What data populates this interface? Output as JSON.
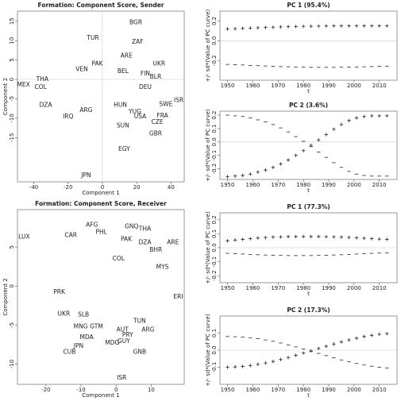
{
  "chart_data": [
    {
      "type": "scatter",
      "title": "Formation: Component Score, Sender",
      "x_label": "Component 1",
      "y_label": "Component 2",
      "labels": [
        "BGR",
        "TUR",
        "ZAF",
        "PAK",
        "ARE",
        "UKR",
        "VEN",
        "MEX",
        "COL",
        "THA",
        "BEL",
        "FIN",
        "BLR",
        "DEU",
        "ISR",
        "SWE",
        "HUN",
        "DZA",
        "IRQ",
        "ARG",
        "USA",
        "FRA",
        "CZE",
        "SUN",
        "GBR",
        "EGY",
        "JPN",
        "YUG"
      ],
      "x": [
        19.5,
        -5.5,
        20.5,
        -3,
        14,
        33,
        -12,
        -46,
        -36,
        -35,
        12,
        25,
        31,
        25,
        44.5,
        37,
        10.5,
        -33,
        -20,
        -9.5,
        22,
        35,
        32,
        12,
        31,
        12.7,
        -9.5,
        19
      ],
      "y": [
        14.6,
        10.6,
        9.6,
        4,
        6,
        4,
        2.6,
        -1.4,
        -2,
        0,
        2,
        1.4,
        0.6,
        -2,
        -5.4,
        -6.4,
        -6.6,
        -6.6,
        -9.6,
        -8,
        -9.6,
        -9.4,
        -11,
        -12,
        -14,
        -18,
        -24.8,
        -8.4
      ],
      "xlim": [
        -49.5,
        47.7
      ],
      "ylim": [
        -26.4,
        17.6
      ],
      "xticks": [
        -40,
        -20,
        0,
        20,
        40
      ],
      "yticks": [
        -15,
        -10,
        -5,
        0,
        5,
        10,
        15
      ],
      "zero_lines": true,
      "color": "#222222"
    },
    {
      "type": "line",
      "title": "PC 1 (95.4%)",
      "x_label": "t",
      "y_label": "+/- sd*(Value of PC curve)",
      "x": [
        1950,
        1953,
        1956,
        1959,
        1962,
        1965,
        1968,
        1971,
        1974,
        1977,
        1980,
        1983,
        1986,
        1989,
        1992,
        1995,
        1998,
        2001,
        2004,
        2007,
        2010,
        2013
      ],
      "series": [
        {
          "marker": "+",
          "values": [
            0.12,
            0.122,
            0.125,
            0.128,
            0.131,
            0.134,
            0.137,
            0.14,
            0.142,
            0.144,
            0.146,
            0.147,
            0.148,
            0.149,
            0.15,
            0.15,
            0.15,
            0.15,
            0.15,
            0.15,
            0.15,
            0.15
          ]
        },
        {
          "marker": "-",
          "values": [
            -0.24,
            -0.243,
            -0.246,
            -0.25,
            -0.253,
            -0.256,
            -0.259,
            -0.262,
            -0.264,
            -0.266,
            -0.268,
            -0.27,
            -0.27,
            -0.27,
            -0.27,
            -0.269,
            -0.268,
            -0.266,
            -0.264,
            -0.262,
            -0.26,
            -0.258
          ]
        }
      ],
      "xlim": [
        1947,
        2017
      ],
      "ylim": [
        -0.4,
        0.3
      ],
      "xticks": [
        1950,
        1960,
        1970,
        1980,
        1990,
        2000,
        2010
      ],
      "yticks": [
        -0.2,
        {
          "value": 0,
          "label": "0.0"
        },
        0.2
      ],
      "zero_lines": true,
      "color": "#222222"
    },
    {
      "type": "line",
      "title": "PC 2 (3.6%)",
      "x_label": "t",
      "y_label": "+/- sd*(Value of PC curve)",
      "x": [
        1950,
        1953,
        1956,
        1959,
        1962,
        1965,
        1968,
        1971,
        1974,
        1977,
        1980,
        1983,
        1986,
        1989,
        1992,
        1995,
        1998,
        2001,
        2004,
        2007,
        2010,
        2013
      ],
      "series": [
        {
          "marker": "+",
          "values": [
            -0.26,
            -0.255,
            -0.25,
            -0.24,
            -0.225,
            -0.21,
            -0.19,
            -0.165,
            -0.135,
            -0.1,
            -0.065,
            -0.025,
            0.015,
            0.055,
            0.095,
            0.13,
            0.16,
            0.18,
            0.19,
            0.195,
            0.195,
            0.195
          ]
        },
        {
          "marker": "-",
          "values": [
            0.2,
            0.195,
            0.19,
            0.18,
            0.165,
            0.15,
            0.13,
            0.105,
            0.075,
            0.04,
            0.005,
            -0.035,
            -0.075,
            -0.115,
            -0.155,
            -0.19,
            -0.22,
            -0.24,
            -0.25,
            -0.255,
            -0.255,
            -0.255
          ]
        }
      ],
      "xlim": [
        1947,
        2017
      ],
      "ylim": [
        -0.28,
        0.23
      ],
      "xticks": [
        1950,
        1960,
        1970,
        1980,
        1990,
        2000,
        2010
      ],
      "yticks": [
        -0.2,
        -0.1,
        {
          "value": 0,
          "label": "0.0"
        },
        0.1,
        0.2
      ],
      "zero_lines": true,
      "color": "#222222"
    },
    {
      "type": "scatter",
      "title": "Formation: Component Score, Receiver",
      "x_label": "Component 1",
      "y_label": "Component 2",
      "labels": [
        "AFG",
        "GNQ",
        "THA",
        "LUX",
        "CAR",
        "PHL",
        "ARE",
        "PAK",
        "DZA",
        "BHR",
        "COL",
        "MYS",
        "ERI",
        "UKR",
        "SLB",
        "PRK",
        "TUN",
        "MNG",
        "GTM",
        "MDA",
        "MDG",
        "GUY",
        "PRY",
        "JPN",
        "CUB",
        "GNB",
        "ISR",
        "AUT",
        "ARG"
      ],
      "x": [
        -6.9,
        4.4,
        8.2,
        -26.2,
        -12.9,
        -4.2,
        16.2,
        2.9,
        8.2,
        11.3,
        0.7,
        13.2,
        17.7,
        -14.9,
        -9.3,
        -16.2,
        6.7,
        -10.1,
        -5.6,
        -8.4,
        -1.1,
        2.2,
        3.3,
        -10.7,
        -13.3,
        6.7,
        1.6,
        1.8,
        9.1
      ],
      "y": [
        7.8,
        7.6,
        7.3,
        6.3,
        6.5,
        6.9,
        5.6,
        6,
        5.6,
        4.6,
        3.5,
        2.4,
        -1.4,
        -3.6,
        -3.7,
        -0.8,
        -4.5,
        -5.2,
        -5.2,
        -6.6,
        -7.3,
        -7.1,
        -6.3,
        -7.7,
        -8.5,
        -8.5,
        -11.8,
        -5.6,
        -5.6
      ],
      "xlim": [
        -28.1,
        19.4
      ],
      "ylim": [
        -12.6,
        9.8
      ],
      "xticks": [
        -20,
        -10,
        0,
        10
      ],
      "yticks": [
        -10,
        -5,
        0,
        5
      ],
      "zero_lines": false,
      "color": "#222222"
    },
    {
      "type": "line",
      "title": "PC 1 (77.3%)",
      "x_label": "t",
      "y_label": "+/- sd*(Value of PC curve)",
      "x": [
        1950,
        1953,
        1956,
        1959,
        1962,
        1965,
        1968,
        1971,
        1974,
        1977,
        1980,
        1983,
        1986,
        1989,
        1992,
        1995,
        1998,
        2001,
        2004,
        2007,
        2010,
        2013
      ],
      "series": [
        {
          "marker": "+",
          "values": [
            0.05,
            0.055,
            0.06,
            0.065,
            0.07,
            0.073,
            0.076,
            0.078,
            0.08,
            0.08,
            0.08,
            0.08,
            0.08,
            0.079,
            0.078,
            0.076,
            0.074,
            0.071,
            0.068,
            0.065,
            0.062,
            0.06
          ]
        },
        {
          "marker": "-",
          "values": [
            -0.04,
            -0.042,
            -0.045,
            -0.048,
            -0.05,
            -0.052,
            -0.054,
            -0.055,
            -0.056,
            -0.056,
            -0.056,
            -0.056,
            -0.055,
            -0.054,
            -0.052,
            -0.05,
            -0.048,
            -0.045,
            -0.042,
            -0.04,
            -0.038,
            -0.036
          ]
        }
      ],
      "xlim": [
        1947,
        2017
      ],
      "ylim": [
        -0.25,
        0.25
      ],
      "xticks": [
        1950,
        1960,
        1970,
        1980,
        1990,
        2000,
        2010
      ],
      "yticks": [
        -0.2,
        -0.1,
        {
          "value": 0,
          "label": "0.0"
        },
        0.1,
        0.2
      ],
      "zero_lines": true,
      "color": "#222222"
    },
    {
      "type": "line",
      "title": "PC 2 (17.3%)",
      "x_label": "t",
      "y_label": "+/- sd*(Value of PC curve)",
      "x": [
        1950,
        1953,
        1956,
        1959,
        1962,
        1965,
        1968,
        1971,
        1974,
        1977,
        1980,
        1983,
        1986,
        1989,
        1992,
        1995,
        1998,
        2001,
        2004,
        2007,
        2010,
        2013
      ],
      "series": [
        {
          "marker": "+",
          "values": [
            -0.1,
            -0.098,
            -0.095,
            -0.09,
            -0.083,
            -0.075,
            -0.066,
            -0.055,
            -0.043,
            -0.03,
            -0.017,
            -0.004,
            0.01,
            0.023,
            0.036,
            0.048,
            0.06,
            0.07,
            0.08,
            0.087,
            0.093,
            0.097
          ]
        },
        {
          "marker": "-",
          "values": [
            0.08,
            0.079,
            0.077,
            0.073,
            0.067,
            0.06,
            0.052,
            0.042,
            0.031,
            0.019,
            0.007,
            -0.006,
            -0.019,
            -0.032,
            -0.045,
            -0.057,
            -0.068,
            -0.078,
            -0.087,
            -0.094,
            -0.1,
            -0.104
          ]
        }
      ],
      "xlim": [
        1947,
        2017
      ],
      "ylim": [
        -0.2,
        0.2
      ],
      "xticks": [
        1950,
        1960,
        1970,
        1980,
        1990,
        2000,
        2010
      ],
      "yticks": [
        -0.1,
        {
          "value": 0,
          "label": "0.0"
        },
        0.1
      ],
      "zero_lines": true,
      "color": "#222222"
    }
  ]
}
